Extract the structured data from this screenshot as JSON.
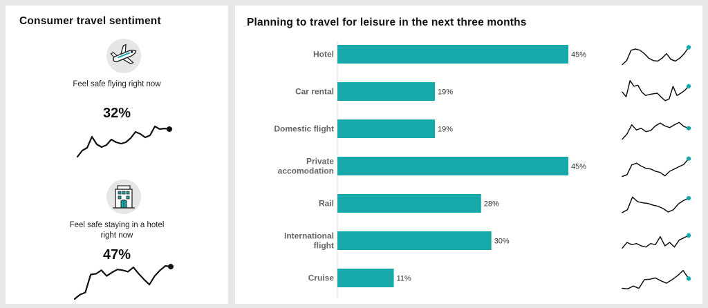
{
  "left": {
    "title": "Consumer travel sentiment",
    "flying": {
      "icon": "airplane-icon",
      "label": "Feel safe flying right now",
      "value": "32%",
      "trend": [
        3,
        12,
        16,
        32,
        21,
        17,
        20,
        28,
        24,
        22,
        24,
        30,
        39,
        36,
        31,
        34,
        47,
        43,
        44,
        43
      ]
    },
    "hotel": {
      "icon": "hotel-building-icon",
      "label_line1": "Feel safe staying in a hotel",
      "label_line2": "right now",
      "value": "47%",
      "trend": [
        3,
        9,
        12,
        37,
        38,
        43,
        35,
        40,
        44,
        43,
        41,
        47,
        38,
        30,
        23,
        35,
        43,
        49,
        48
      ]
    }
  },
  "right": {
    "title": "Planning to travel for leisure in the next three months"
  },
  "colors": {
    "bar": "#17a9a9",
    "spark_dot": "#17a9a9",
    "line": "#111111"
  },
  "chart_data": {
    "type": "bar",
    "orientation": "horizontal",
    "title": "Planning to travel for leisure in the next three months",
    "xlim": [
      0,
      45
    ],
    "series": [
      {
        "name": "Planning to travel",
        "categories": [
          [
            "Hotel"
          ],
          [
            "Car rental"
          ],
          [
            "Domestic flight"
          ],
          [
            "Private",
            "accomodation"
          ],
          [
            "Rail"
          ],
          [
            "International",
            "flight"
          ],
          [
            "Cruise"
          ]
        ],
        "values": [
          45,
          19,
          19,
          45,
          28,
          30,
          11
        ],
        "labels": [
          "45%",
          "19%",
          "19%",
          "45%",
          "28%",
          "30%",
          "11%"
        ]
      }
    ],
    "sparklines": [
      [
        3,
        10,
        28,
        30,
        28,
        22,
        14,
        10,
        9,
        14,
        22,
        12,
        9,
        14,
        22,
        33
      ],
      [
        20,
        12,
        40,
        30,
        32,
        20,
        14,
        16,
        17,
        18,
        11,
        5,
        8,
        30,
        14,
        18,
        23,
        30
      ],
      [
        3,
        12,
        28,
        19,
        22,
        16,
        18,
        26,
        31,
        26,
        23,
        28,
        32,
        25,
        22
      ],
      [
        3,
        6,
        23,
        26,
        21,
        17,
        16,
        12,
        10,
        4,
        12,
        16,
        20,
        24,
        34
      ],
      [
        5,
        10,
        32,
        24,
        22,
        21,
        18,
        16,
        12,
        6,
        10,
        20,
        26,
        30
      ],
      [
        8,
        18,
        14,
        16,
        12,
        10,
        16,
        14,
        28,
        12,
        18,
        10,
        22,
        26,
        30
      ],
      [
        3,
        2,
        7,
        3,
        18,
        19,
        21,
        16,
        12,
        18,
        25,
        34,
        20
      ]
    ]
  }
}
